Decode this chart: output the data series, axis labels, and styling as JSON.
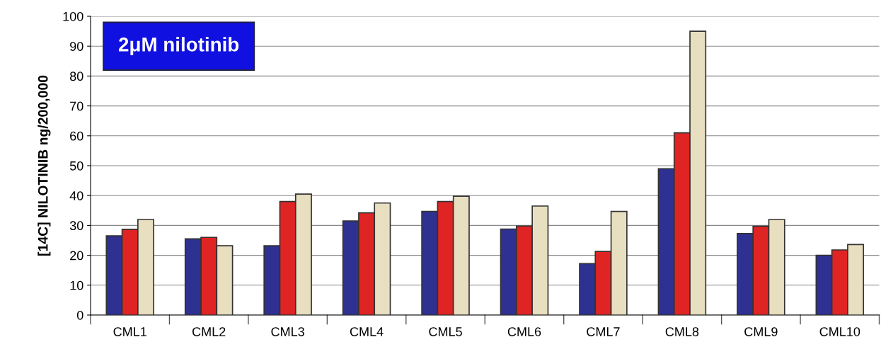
{
  "chart_data": {
    "type": "bar",
    "ylabel": "[14C] NILOTINIB ng/200,000",
    "annotations": [
      "2μM nilotinib"
    ],
    "categories": [
      "CML1",
      "CML2",
      "CML3",
      "CML4",
      "CML5",
      "CML6",
      "CML7",
      "CML8",
      "CML9",
      "CML10"
    ],
    "series": [
      {
        "color": "#2e3192",
        "values": [
          26.5,
          25.5,
          23.2,
          31.5,
          34.7,
          28.8,
          17.2,
          49,
          27.3,
          20
        ]
      },
      {
        "color": "#e02424",
        "values": [
          28.7,
          26,
          38,
          34.2,
          38,
          29.8,
          21.3,
          61,
          29.7,
          21.8
        ]
      },
      {
        "color": "#e8dfc0",
        "values": [
          32,
          23.2,
          40.5,
          37.5,
          39.8,
          36.5,
          34.7,
          95,
          32,
          23.6
        ]
      }
    ],
    "ylim": [
      0,
      100
    ],
    "yticks": [
      0,
      10,
      20,
      30,
      40,
      50,
      60,
      70,
      80,
      90,
      100
    ],
    "grid": "y",
    "legend": false
  }
}
